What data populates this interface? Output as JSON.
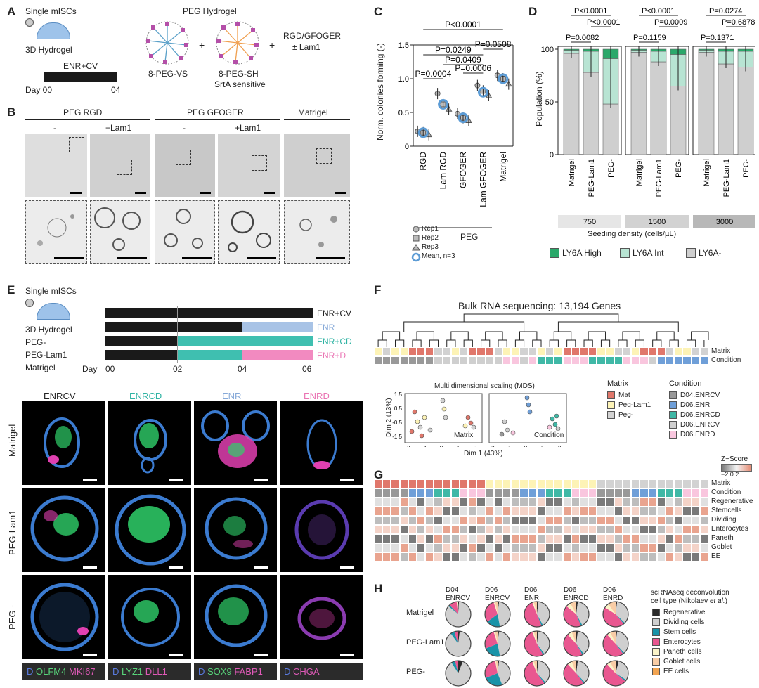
{
  "panel_letters": [
    "A",
    "B",
    "C",
    "D",
    "E",
    "F",
    "G",
    "H"
  ],
  "panel_a": {
    "cells": "Single mISCs",
    "hydrogel": "3D Hydrogel",
    "medium": "ENR+CV",
    "day0": "Day 00",
    "day4": "04",
    "peg_title": "PEG Hydrogel",
    "vs": "8-PEG-VS",
    "sh": "8-PEG-SH",
    "sh_sub": "SrtA sensitive",
    "ligands": "RGD/GFOGER",
    "ligands2": "± Lam1",
    "plus": "+"
  },
  "panel_b": {
    "groups": [
      "PEG RGD",
      "PEG GFOGER",
      "Matrigel"
    ],
    "sub": [
      "-",
      "+Lam1",
      "-",
      "+Lam1"
    ]
  },
  "chart_data": [
    {
      "type": "scatter",
      "title": "",
      "ylabel": "Norm. colonies forming  (-)",
      "ylim": [
        0,
        1.5
      ],
      "yticks": [
        "0",
        "0.5",
        "1.0",
        "1.5"
      ],
      "categories": [
        "RGD",
        "Lam RGD",
        "GFOGER",
        "Lam GFOGER",
        "Matrigel"
      ],
      "group_label": "PEG",
      "series": [
        {
          "name": "Rep1",
          "values": [
            0.22,
            0.78,
            0.48,
            0.9,
            1.05
          ]
        },
        {
          "name": "Rep2",
          "values": [
            0.2,
            0.62,
            0.42,
            0.82,
            1.0
          ]
        },
        {
          "name": "Rep3",
          "values": [
            0.17,
            0.55,
            0.38,
            0.75,
            0.92
          ]
        },
        {
          "name": "Mean, n=3",
          "values": [
            0.2,
            0.62,
            0.42,
            0.8,
            1.0
          ]
        }
      ],
      "pvalues": [
        "P=0.0004",
        "P=0.0249",
        "P=0.0409",
        "P=0.0006",
        "P=0.0508",
        "P<0.0001"
      ]
    },
    {
      "type": "bar",
      "ylabel": "Population (%)",
      "ylim": [
        0,
        100
      ],
      "yticks": [
        "0",
        "50",
        "100"
      ],
      "categories": [
        "Matrigel",
        "PEG-Lam1",
        "PEG-"
      ],
      "densities": [
        "750",
        "1500",
        "3000"
      ],
      "xlabel": "Seeding density (cells/µL)",
      "series": [
        {
          "name": "LY6A-",
          "values": [
            [
              96,
              78,
              48
            ],
            [
              97,
              88,
              65
            ],
            [
              97,
              86,
              83
            ]
          ]
        },
        {
          "name": "LY6A Int",
          "values": [
            [
              3,
              20,
              43
            ],
            [
              2,
              10,
              30
            ],
            [
              2,
              12,
              15
            ]
          ]
        },
        {
          "name": "LY6A High",
          "values": [
            [
              1,
              2,
              9
            ],
            [
              1,
              2,
              5
            ],
            [
              1,
              2,
              2
            ]
          ]
        }
      ],
      "pvalues": [
        [
          "P=0.0082",
          "P<0.0001",
          "P<0.0001"
        ],
        [
          "P=0.1159",
          "P=0.0009",
          "P<0.0001"
        ],
        [
          "P=0.1371",
          "P=0.6878",
          "P=0.0274"
        ]
      ]
    }
  ],
  "legend_d": [
    "LY6A High",
    "LY6A Int",
    "LY6A-"
  ],
  "colors": {
    "high": "#2aa86a",
    "int": "#b8e4d3",
    "neg": "#cfcfcf",
    "mat": "#e0776b",
    "peglam": "#fdf3b6",
    "peg": "#d2d2d2",
    "enrcv": "#999999",
    "enr": "#6f9fd8",
    "enrcd": "#3fb8a6",
    "enrd": "#f08cc2",
    "cv": "#1a1a1a"
  },
  "panel_e": {
    "cells": "Single mISCs",
    "conditions": [
      "ENR+CV",
      "ENR",
      "ENR+CD",
      "ENR+D"
    ],
    "rows_label": [
      "3D Hydrogel",
      "PEG-",
      "PEG-Lam1",
      "Matrigel"
    ],
    "day": "Day",
    "days": [
      "00",
      "02",
      "04",
      "06"
    ],
    "cols": [
      "ENRCV",
      "ENRCD",
      "ENR",
      "ENRD"
    ],
    "rows": [
      "Matrigel",
      "PEG-Lam1",
      "PEG -"
    ],
    "stains": [
      {
        "d": "D",
        "a": "OLFM4",
        "b": "MKI67"
      },
      {
        "d": "D",
        "a": "LYZ1",
        "b": "DLL1"
      },
      {
        "d": "D",
        "a": "SOX9",
        "b": "FABP1"
      },
      {
        "d": "D",
        "a": "CHGA",
        "b": ""
      }
    ]
  },
  "panel_f": {
    "title": "Bulk RNA sequencing: 13,194 Genes",
    "row_matrix": "Matrix",
    "row_condition": "Condition",
    "mds_title": "Multi dimensional scaling (MDS)",
    "dim1": "Dim 1 (43%)",
    "dim2": "Dim 2 (13%)",
    "sub1": "Matrix",
    "sub2": "Condition",
    "mds_ticks_y": [
      "1.5",
      "1.0",
      "0.5",
      "0",
      "-0.5",
      "-1.0",
      "-1.5"
    ],
    "mds_ticks_x": [
      "-2",
      "-1",
      "0",
      "1",
      "2"
    ],
    "legend_matrix_title": "Matrix",
    "legend_matrix": [
      "Mat",
      "Peg-Lam1",
      "Peg-"
    ],
    "legend_condition_title": "Condition",
    "legend_condition": [
      "D04.ENRCV",
      "D06.ENR",
      "D06.ENRCD",
      "D06.ENRCV",
      "D06.ENRD"
    ]
  },
  "panel_g": {
    "zscore": "Z−Score",
    "zticks": "−2 0 2",
    "rows": [
      "Matrix",
      "Condition",
      "Regenerative",
      "Stemcells",
      "Dividing",
      "Enterocytes",
      "Paneth",
      "Goblet",
      "EE"
    ]
  },
  "panel_h": {
    "cols": [
      [
        "D04",
        "ENRCV"
      ],
      [
        "D06",
        "ENRCV"
      ],
      [
        "D06",
        "ENR"
      ],
      [
        "D06",
        "ENRCD"
      ],
      [
        "D06",
        "ENRD"
      ]
    ],
    "rows": [
      "Matrigel",
      "PEG-Lam1",
      "PEG-"
    ],
    "legend_title1": "scRNAseq deconvolution",
    "legend_title2": "cell type (Nikolaev",
    "legend_title3": "et al.",
    "legend_title4": ")",
    "legend": [
      "Regenerative",
      "Dividing cells",
      "Stem cells",
      "Enterocytes",
      "Paneth cells",
      "Goblet cells",
      "EE cells"
    ],
    "legend_colors": [
      "#2b2b2b",
      "#cfcfcf",
      "#1993a8",
      "#e95790",
      "#fbf3c8",
      "#f9cda6",
      "#f2a451"
    ]
  }
}
